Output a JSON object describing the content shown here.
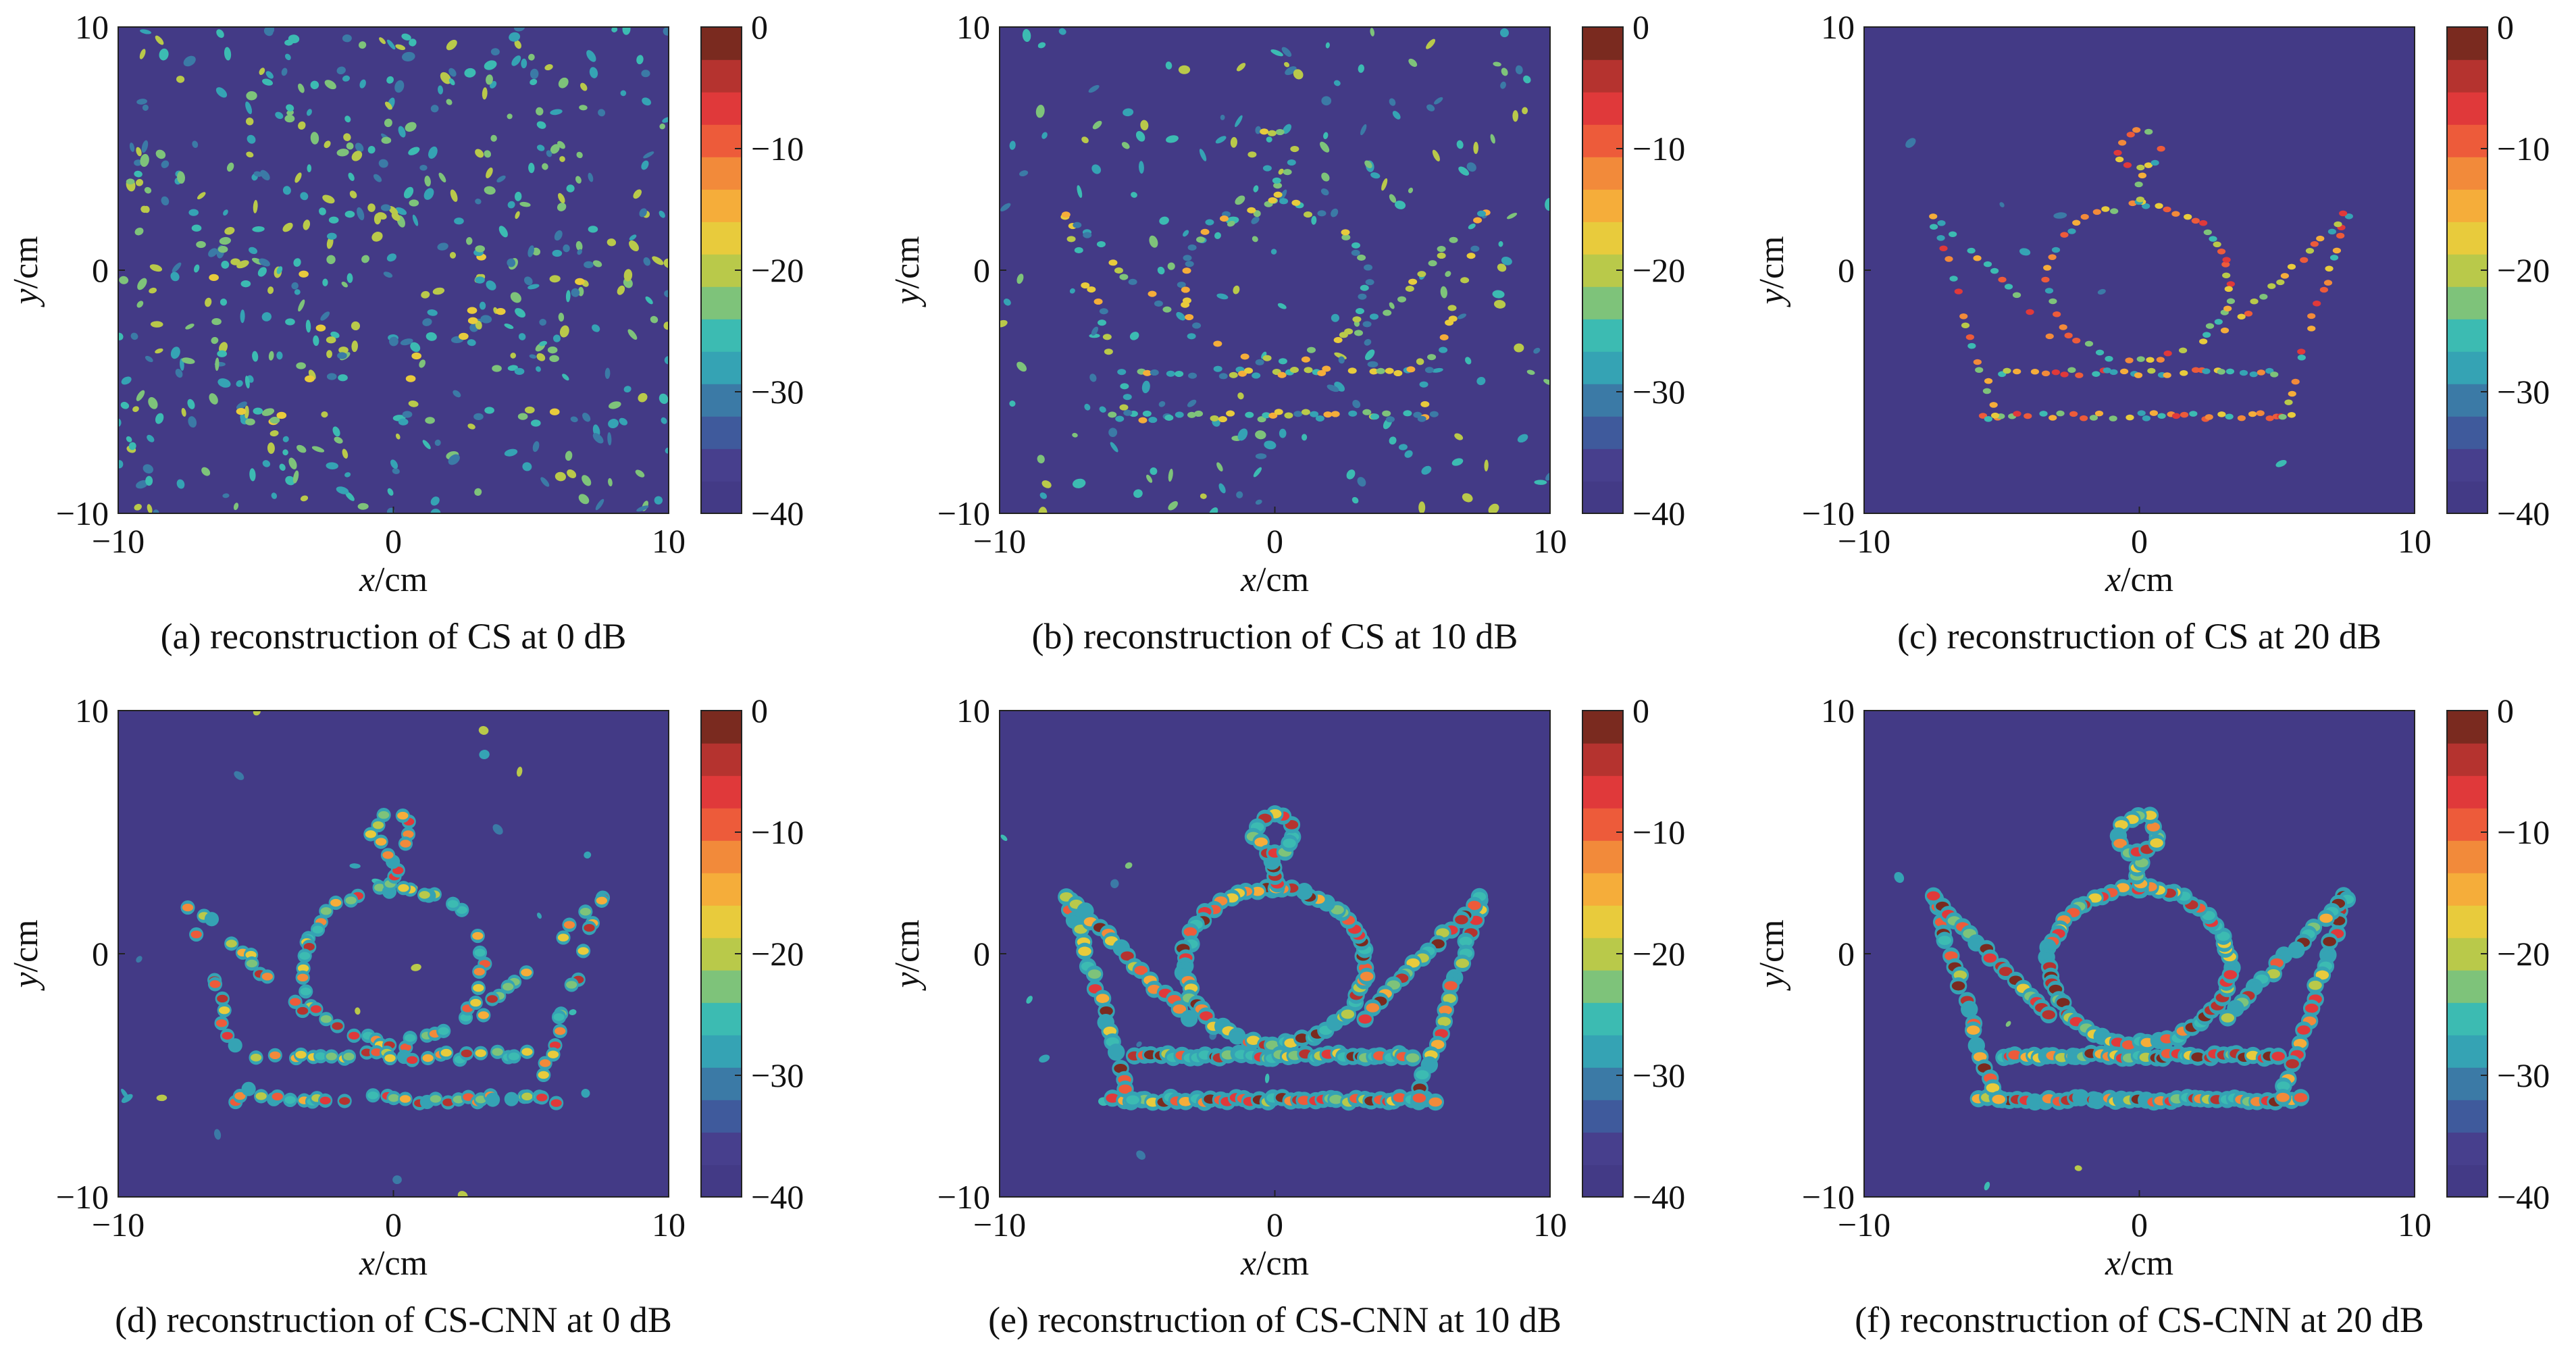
{
  "colors": {
    "background": "#433a86",
    "colorbar": [
      "#433a86",
      "#473f8d",
      "#3f5a9c",
      "#3b7aa6",
      "#35a3b4",
      "#3cbbb2",
      "#7ec37a",
      "#b9c94a",
      "#e8cb3c",
      "#f5ad3a",
      "#f28a3a",
      "#ed5b3a",
      "#e0393a",
      "#b5332f",
      "#7a2a1f"
    ]
  },
  "chart_data": [
    {
      "type": "heatmap",
      "caption": "(a) reconstruction of CS at 0 dB",
      "xlabel": "x",
      "xunit": "/cm",
      "ylabel": "y",
      "yunit": "/cm",
      "xlim": [
        -10,
        10
      ],
      "ylim": [
        -10,
        10
      ],
      "xticks": [
        "−10",
        "0",
        "10"
      ],
      "yticks": [
        "10",
        "0",
        "−10"
      ],
      "colorbar": {
        "range": [
          -40,
          0
        ],
        "ticks": [
          "0",
          "−10",
          "−20",
          "−30",
          "−40"
        ]
      },
      "image": "scattered speckle noise over the whole field; crown outline barely visible"
    },
    {
      "type": "heatmap",
      "caption": "(b) reconstruction of CS at 10 dB",
      "xlabel": "x",
      "xunit": "/cm",
      "ylabel": "y",
      "yunit": "/cm",
      "xlim": [
        -10,
        10
      ],
      "ylim": [
        -10,
        10
      ],
      "xticks": [
        "−10",
        "0",
        "10"
      ],
      "yticks": [
        "10",
        "0",
        "−10"
      ],
      "colorbar": {
        "range": [
          -40,
          0
        ],
        "ticks": [
          "0",
          "−10",
          "−20",
          "−30",
          "−40"
        ]
      },
      "image": "dotted crown outline with scattered noise"
    },
    {
      "type": "heatmap",
      "caption": "(c) reconstruction of CS at 20 dB",
      "xlabel": "x",
      "xunit": "/cm",
      "ylabel": "y",
      "yunit": "/cm",
      "xlim": [
        -10,
        10
      ],
      "ylim": [
        -10,
        10
      ],
      "xticks": [
        "−10",
        "0",
        "10"
      ],
      "yticks": [
        "10",
        "0",
        "−10"
      ],
      "colorbar": {
        "range": [
          -40,
          0
        ],
        "ticks": [
          "0",
          "−10",
          "−20",
          "−30",
          "−40"
        ]
      },
      "image": "dotted crown outline, little noise"
    },
    {
      "type": "heatmap",
      "caption": "(d) reconstruction of CS-CNN at 0 dB",
      "xlabel": "x",
      "xunit": "/cm",
      "ylabel": "y",
      "yunit": "/cm",
      "xlim": [
        -10,
        10
      ],
      "ylim": [
        -10,
        10
      ],
      "xticks": [
        "−10",
        "0",
        "10"
      ],
      "yticks": [
        "10",
        "0",
        "−10"
      ],
      "colorbar": {
        "range": [
          -40,
          0
        ],
        "ticks": [
          "0",
          "−10",
          "−20",
          "−30",
          "−40"
        ]
      },
      "image": "fragmented crown outline"
    },
    {
      "type": "heatmap",
      "caption": "(e) reconstruction of CS-CNN at 10 dB",
      "xlabel": "x",
      "xunit": "/cm",
      "ylabel": "y",
      "yunit": "/cm",
      "xlim": [
        -10,
        10
      ],
      "ylim": [
        -10,
        10
      ],
      "xticks": [
        "−10",
        "0",
        "10"
      ],
      "yticks": [
        "10",
        "0",
        "−10"
      ],
      "colorbar": {
        "range": [
          -40,
          0
        ],
        "ticks": [
          "0",
          "−10",
          "−20",
          "−30",
          "−40"
        ]
      },
      "image": "continuous crown outline"
    },
    {
      "type": "heatmap",
      "caption": "(f) reconstruction of CS-CNN at 20 dB",
      "xlabel": "x",
      "xunit": "/cm",
      "ylabel": "y",
      "yunit": "/cm",
      "xlim": [
        -10,
        10
      ],
      "ylim": [
        -10,
        10
      ],
      "xticks": [
        "−10",
        "0",
        "10"
      ],
      "yticks": [
        "10",
        "0",
        "−10"
      ],
      "colorbar": {
        "range": [
          -40,
          0
        ],
        "ticks": [
          "0",
          "−10",
          "−20",
          "−30",
          "−40"
        ]
      },
      "image": "continuous crown outline"
    }
  ]
}
